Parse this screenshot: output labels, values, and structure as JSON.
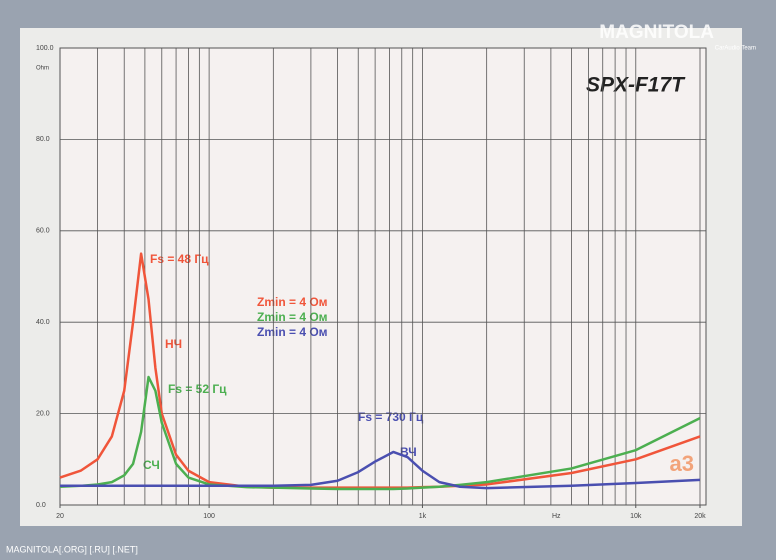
{
  "chart_data": {
    "type": "line",
    "title": "SPX-F17T",
    "y_label": "Ohm",
    "x_label": "Hz",
    "log_x": true,
    "grid": true,
    "xlim": [
      20,
      20000
    ],
    "ylim": [
      0,
      100
    ],
    "xticks": [
      20,
      100,
      {
        "value": 1000,
        "label": "1k"
      },
      {
        "value": 10000,
        "label": "10k"
      },
      {
        "value": 20000,
        "label": "20k"
      }
    ],
    "xgrid": [
      20,
      30,
      40,
      50,
      60,
      70,
      80,
      90,
      100,
      200,
      300,
      400,
      500,
      600,
      700,
      800,
      900,
      1000,
      2000,
      3000,
      4000,
      5000,
      6000,
      7000,
      8000,
      9000,
      10000,
      20000
    ],
    "yticks": [
      {
        "value": 0,
        "label": "0.0"
      },
      {
        "value": 20,
        "label": "20.0"
      },
      {
        "value": 40,
        "label": "40.0"
      },
      {
        "value": 60,
        "label": "60.0"
      },
      {
        "value": 80,
        "label": "80.0"
      },
      {
        "value": 100,
        "label": "100.0"
      }
    ],
    "x": [
      20,
      25,
      30,
      35,
      40,
      44,
      48,
      52,
      56,
      60,
      70,
      80,
      100,
      150,
      200,
      300,
      400,
      500,
      600,
      730,
      850,
      1000,
      1200,
      1500,
      2000,
      5000,
      10000,
      20000
    ],
    "series": [
      {
        "name": "НЧ",
        "color": "#f0553a",
        "values": [
          6,
          7.5,
          10,
          15,
          25,
          40,
          55,
          45,
          30,
          20,
          11,
          7.5,
          5,
          4,
          3.8,
          3.8,
          3.8,
          3.8,
          3.8,
          3.8,
          3.8,
          3.9,
          4,
          4.2,
          4.5,
          7,
          10,
          15
        ]
      },
      {
        "name": "СЧ",
        "color": "#4caf50",
        "values": [
          4,
          4.2,
          4.5,
          5,
          6.5,
          9,
          16,
          28,
          25,
          18,
          9,
          6,
          4.5,
          3.9,
          3.8,
          3.6,
          3.5,
          3.5,
          3.5,
          3.5,
          3.6,
          3.8,
          4,
          4.4,
          5,
          8,
          12,
          19
        ]
      },
      {
        "name": "ВЧ",
        "color": "#4a4fb0",
        "values": [
          4.2,
          4.2,
          4.2,
          4.2,
          4.2,
          4.2,
          4.2,
          4.2,
          4.2,
          4.2,
          4.2,
          4.2,
          4.2,
          4.2,
          4.2,
          4.4,
          5.3,
          7.2,
          9.5,
          11.6,
          10.5,
          7.5,
          5,
          4,
          3.7,
          4.2,
          4.8,
          5.5
        ]
      }
    ],
    "annotations": [
      "Fs = 48 Гц",
      "Fs = 52 Гц",
      "Fs = 730 Гц",
      "Zmin = 4 Ом",
      "Zmin = 4 Ом",
      "Zmin = 4 Ом"
    ]
  },
  "logo": "MAGNITOLA",
  "logo_sub": "CarAudio Team",
  "brand": "a3",
  "footer": "MAGNITOLA[.ORG] [.RU] [.NET]"
}
